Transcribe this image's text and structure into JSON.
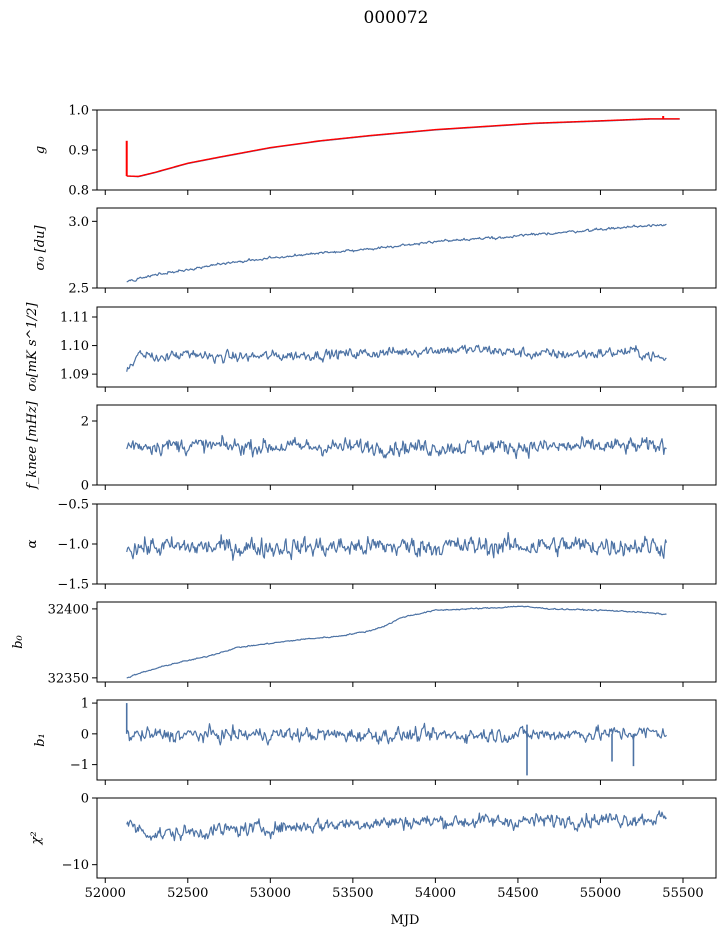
{
  "figure": {
    "title": "000072",
    "xlabel": "MJD",
    "xlim": [
      51950,
      55700
    ],
    "xticks": [
      "52000",
      "52500",
      "53000",
      "53500",
      "54000",
      "54500",
      "55000",
      "55500"
    ],
    "xtick_values": [
      52000,
      52500,
      53000,
      53500,
      54000,
      54500,
      55000,
      55500
    ],
    "line_color": "#4c72a4",
    "accent_color": "#ff0000"
  },
  "chart_data": [
    {
      "type": "line",
      "ylabel": "g",
      "ylim": [
        0.8,
        1.0
      ],
      "yticks": [
        "0.8",
        "0.9",
        "1.0"
      ],
      "ytick_values": [
        0.8,
        0.9,
        1.0
      ],
      "x": [
        52130,
        52200,
        52300,
        52500,
        52700,
        53000,
        53300,
        53600,
        54000,
        54300,
        54600,
        55000,
        55300,
        55480
      ],
      "series": [
        {
          "color": "#4c72a4",
          "values": [
            0.835,
            0.833,
            0.843,
            0.866,
            0.882,
            0.905,
            0.922,
            0.935,
            0.95,
            0.958,
            0.966,
            0.972,
            0.977,
            0.977
          ]
        },
        {
          "color": "#ff0000",
          "values": [
            0.835,
            0.834,
            0.844,
            0.867,
            0.883,
            0.906,
            0.923,
            0.936,
            0.951,
            0.959,
            0.967,
            0.973,
            0.978,
            0.978
          ]
        }
      ],
      "spikes": [
        {
          "x": 52130,
          "from": 0.835,
          "to": 0.923
        },
        {
          "x": 55380,
          "from": 0.977,
          "to": 0.985
        }
      ]
    },
    {
      "type": "line",
      "ylabel": "σ₀ [du]",
      "ylim": [
        2.5,
        3.1
      ],
      "yticks": [
        "2.5",
        "3.0"
      ],
      "ytick_values": [
        2.5,
        3.0
      ],
      "x": [
        52130,
        52300,
        52600,
        52900,
        53200,
        53500,
        53800,
        54100,
        54400,
        54700,
        55000,
        55200,
        55400
      ],
      "series": [
        {
          "color": "#4c72a4",
          "noise": 0.006,
          "values": [
            2.55,
            2.6,
            2.66,
            2.71,
            2.75,
            2.78,
            2.82,
            2.86,
            2.88,
            2.91,
            2.94,
            2.96,
            2.98
          ]
        }
      ]
    },
    {
      "type": "line",
      "ylabel": "σ₀[mK s^1/2]",
      "ylim": [
        1.0855,
        1.1135
      ],
      "yticks": [
        "1.09",
        "1.10",
        "1.11"
      ],
      "ytick_values": [
        1.09,
        1.1,
        1.11
      ],
      "x": [
        52130,
        52200,
        52500,
        52800,
        53100,
        53400,
        53700,
        54000,
        54300,
        54600,
        54900,
        55200,
        55400
      ],
      "series": [
        {
          "color": "#4c72a4",
          "noise": 0.0012,
          "values": [
            1.091,
            1.096,
            1.0965,
            1.096,
            1.0965,
            1.097,
            1.0975,
            1.0985,
            1.0985,
            1.097,
            1.097,
            1.098,
            1.095
          ]
        }
      ]
    },
    {
      "type": "line",
      "ylabel": "f_knee [mHz]",
      "ylim": [
        0,
        2.5
      ],
      "yticks": [
        "0",
        "2"
      ],
      "ytick_values": [
        0,
        2
      ],
      "x": [
        52130,
        53000,
        54000,
        55000,
        55400
      ],
      "series": [
        {
          "color": "#4c72a4",
          "noise": 0.16,
          "values": [
            1.25,
            1.2,
            1.18,
            1.2,
            1.22
          ]
        }
      ]
    },
    {
      "type": "line",
      "ylabel": "α",
      "ylim": [
        -1.5,
        -0.5
      ],
      "yticks": [
        "−1.5",
        "−1.0",
        "−0.5"
      ],
      "ytick_values": [
        -1.5,
        -1.0,
        -0.5
      ],
      "x": [
        52130,
        53000,
        54000,
        55000,
        55400
      ],
      "series": [
        {
          "color": "#4c72a4",
          "noise": 0.08,
          "values": [
            -1.04,
            -1.04,
            -1.03,
            -1.02,
            -1.02
          ]
        }
      ]
    },
    {
      "type": "line",
      "ylabel": "b₀",
      "ylim": [
        32347,
        32405
      ],
      "yticks": [
        "32350",
        "32400"
      ],
      "ytick_values": [
        32350,
        32400
      ],
      "x": [
        52130,
        52200,
        52400,
        52600,
        52800,
        53000,
        53200,
        53400,
        53600,
        53700,
        53800,
        54000,
        54200,
        54400,
        54500,
        54700,
        55000,
        55200,
        55400
      ],
      "series": [
        {
          "color": "#4c72a4",
          "noise": 0.3,
          "values": [
            32350,
            32353,
            32360,
            32365,
            32372,
            32375,
            32378,
            32380,
            32384,
            32388,
            32394,
            32399,
            32400,
            32401,
            32402,
            32400,
            32399,
            32398,
            32396
          ]
        }
      ]
    },
    {
      "type": "line",
      "ylabel": "b₁",
      "ylim": [
        -1.5,
        1.1
      ],
      "yticks": [
        "−1",
        "0",
        "1"
      ],
      "ytick_values": [
        -1,
        0,
        1
      ],
      "x": [
        52130,
        53000,
        54000,
        55000,
        55400
      ],
      "series": [
        {
          "color": "#4c72a4",
          "noise": 0.15,
          "values": [
            -0.05,
            -0.02,
            -0.05,
            0.0,
            0.05
          ]
        }
      ],
      "spikes": [
        {
          "x": 52130,
          "from": 0.0,
          "to": 1.0
        },
        {
          "x": 54555,
          "from": 0.3,
          "to": -1.35
        },
        {
          "x": 55070,
          "from": 0.0,
          "to": -0.9
        },
        {
          "x": 55200,
          "from": 0.0,
          "to": -1.05
        }
      ]
    },
    {
      "type": "line",
      "ylabel": "χ²",
      "ylim": [
        -12,
        0
      ],
      "yticks": [
        "−10",
        "0"
      ],
      "ytick_values": [
        -10,
        0
      ],
      "x": [
        52130,
        52300,
        52600,
        53000,
        53500,
        54000,
        54500,
        55000,
        55400
      ],
      "series": [
        {
          "color": "#4c72a4",
          "noise": 0.7,
          "values": [
            -4.0,
            -5.5,
            -5.0,
            -4.5,
            -3.8,
            -3.5,
            -3.5,
            -3.2,
            -3.0
          ]
        }
      ]
    }
  ]
}
